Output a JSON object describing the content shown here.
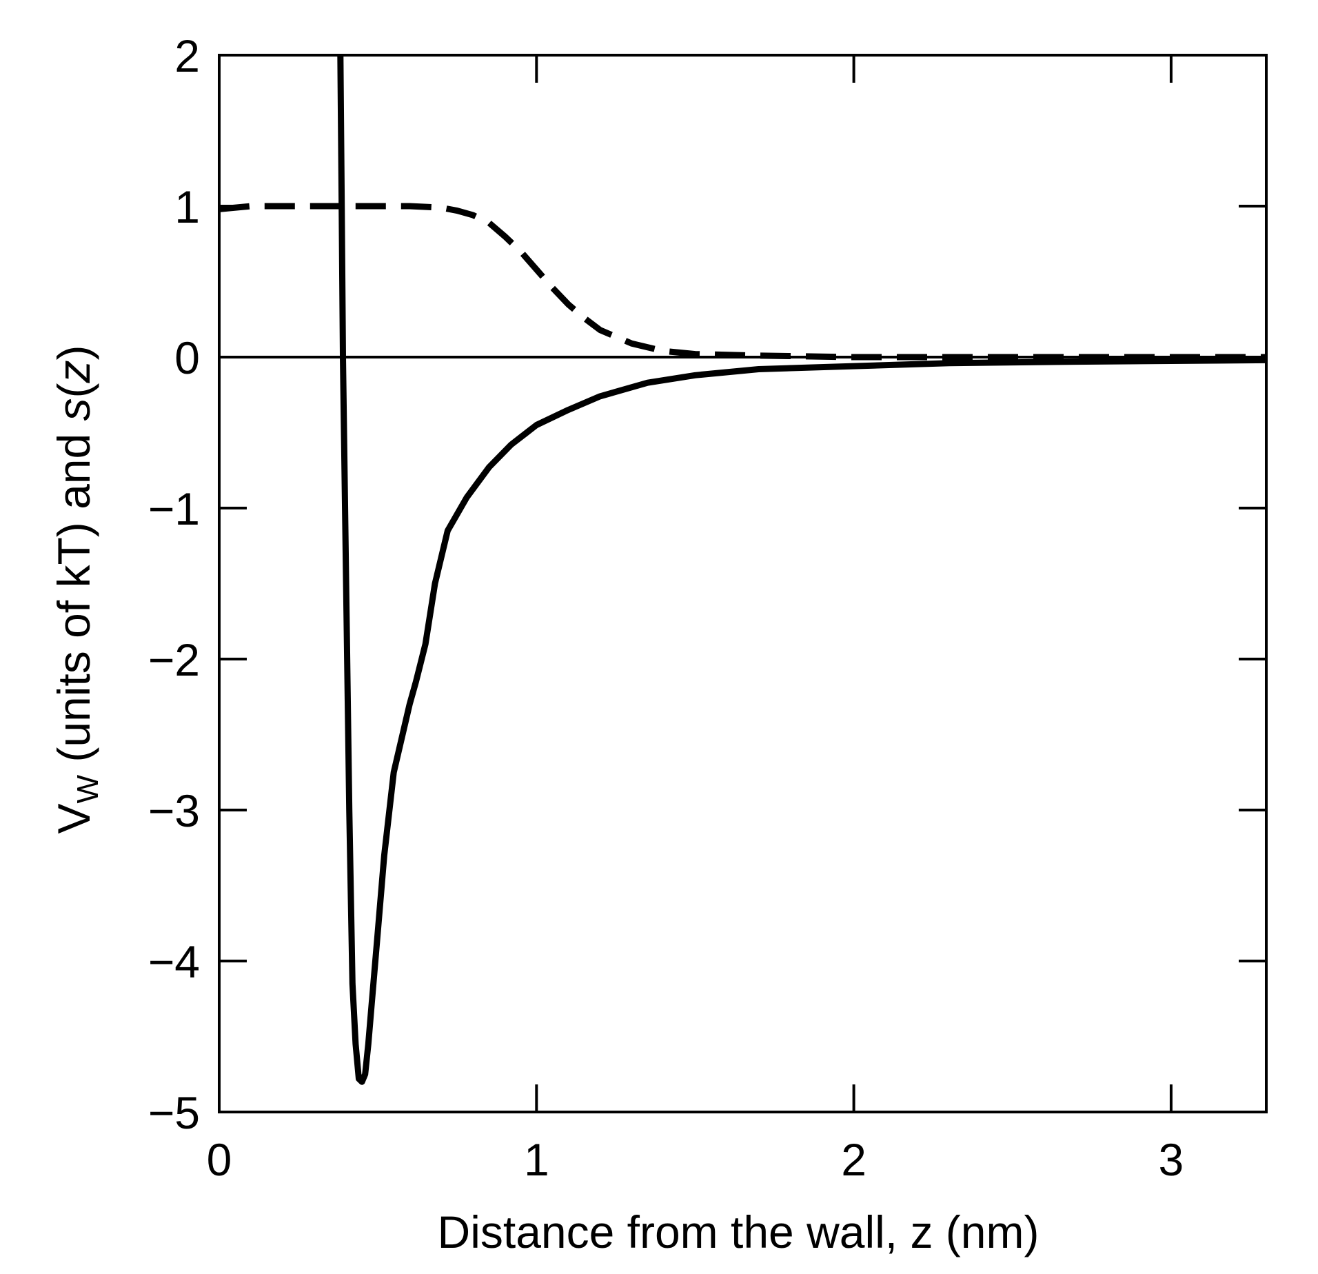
{
  "chart_data": {
    "type": "line",
    "xlabel": "Distance from the wall, z (nm)",
    "ylabel": {
      "main": "V",
      "sub": "W",
      "middle": " (units of kT) and ",
      "func": "s",
      "paren_open": "(",
      "var": "z",
      "paren_close": ")"
    },
    "xlim": [
      0,
      3.3
    ],
    "ylim": [
      -5,
      2
    ],
    "x_ticks": [
      {
        "value": 0,
        "label": "0"
      },
      {
        "value": 1,
        "label": "1"
      },
      {
        "value": 2,
        "label": "2"
      },
      {
        "value": 3,
        "label": "3"
      }
    ],
    "y_ticks": [
      {
        "value": -5,
        "label": "−5"
      },
      {
        "value": -4,
        "label": "−4"
      },
      {
        "value": -3,
        "label": "−3"
      },
      {
        "value": -2,
        "label": "−2"
      },
      {
        "value": -1,
        "label": "−1"
      },
      {
        "value": 0,
        "label": "0"
      },
      {
        "value": 1,
        "label": "1"
      },
      {
        "value": 2,
        "label": "2"
      }
    ],
    "grid": false,
    "zero_line": true,
    "series": [
      {
        "style": "solid",
        "color": "#000000",
        "x": [
          0.382,
          0.386,
          0.39,
          0.4,
          0.41,
          0.42,
          0.43,
          0.44,
          0.45,
          0.46,
          0.47,
          0.48,
          0.5,
          0.52,
          0.55,
          0.6,
          0.62,
          0.65,
          0.68,
          0.72,
          0.78,
          0.85,
          0.92,
          1.0,
          1.1,
          1.2,
          1.35,
          1.5,
          1.7,
          2.0,
          2.3,
          2.7,
          3.3
        ],
        "y": [
          2.0,
          1.0,
          0.0,
          -1.5,
          -3.0,
          -4.15,
          -4.55,
          -4.78,
          -4.8,
          -4.75,
          -4.55,
          -4.3,
          -3.8,
          -3.3,
          -2.75,
          -2.3,
          -2.15,
          -1.9,
          -1.5,
          -1.15,
          -0.93,
          -0.73,
          -0.58,
          -0.45,
          -0.35,
          -0.26,
          -0.17,
          -0.12,
          -0.08,
          -0.06,
          -0.04,
          -0.03,
          -0.02
        ]
      },
      {
        "style": "dashed",
        "color": "#000000",
        "x": [
          0.0,
          0.1,
          0.2,
          0.3,
          0.4,
          0.5,
          0.6,
          0.7,
          0.75,
          0.8,
          0.85,
          0.9,
          0.95,
          1.0,
          1.05,
          1.1,
          1.15,
          1.2,
          1.3,
          1.4,
          1.5,
          1.7,
          2.0,
          2.5,
          3.0,
          3.3
        ],
        "y": [
          0.98,
          1.0,
          1.0,
          1.0,
          1.0,
          1.0,
          1.0,
          0.99,
          0.97,
          0.94,
          0.89,
          0.8,
          0.7,
          0.58,
          0.46,
          0.35,
          0.26,
          0.18,
          0.09,
          0.04,
          0.02,
          0.01,
          0.0,
          0.0,
          0.0,
          0.0
        ]
      }
    ]
  }
}
